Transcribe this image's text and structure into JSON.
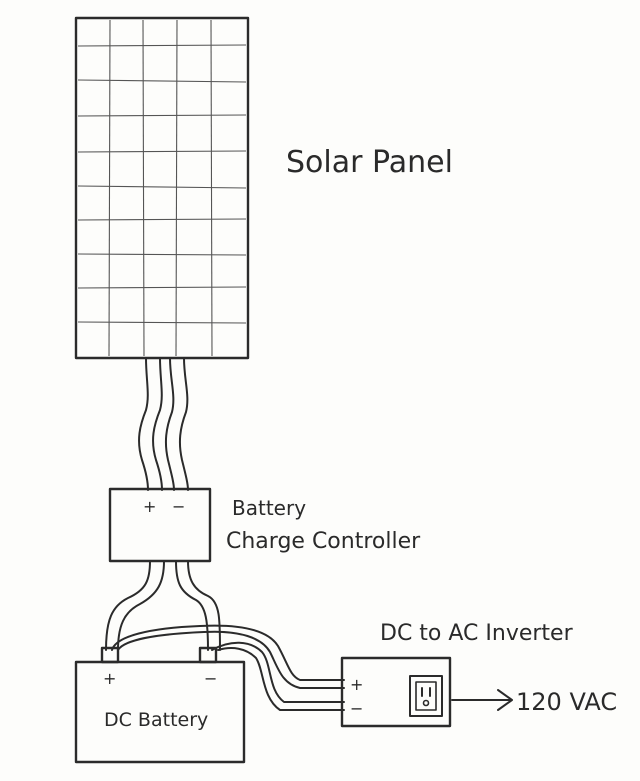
{
  "labels": {
    "solar_panel": "Solar Panel",
    "controller_line1": "Battery",
    "controller_line2": "Charge Controller",
    "controller_plus": "+",
    "controller_minus": "−",
    "battery": "DC Battery",
    "battery_plus": "+",
    "battery_minus": "−",
    "inverter": "DC to AC Inverter",
    "inverter_plus": "+",
    "inverter_minus": "−",
    "output": "120 VAC"
  },
  "colors": {
    "ink": "#2b2b2b",
    "paper": "#fdfdfb"
  }
}
